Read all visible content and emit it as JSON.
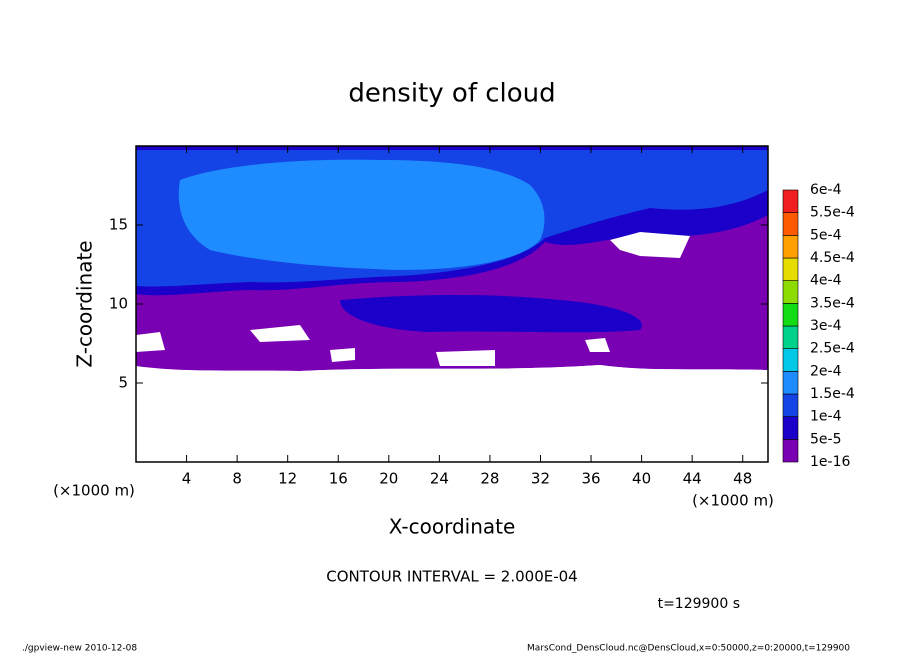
{
  "chart_data": {
    "type": "contour",
    "title": "density of cloud",
    "x_label": "X-coordinate",
    "y_label": "Z-coordinate",
    "x_unit": "(×1000 m)",
    "y_unit": "(×1000 m)",
    "xlim": [
      0,
      50
    ],
    "ylim": [
      0,
      20
    ],
    "xticks": [
      4,
      8,
      12,
      16,
      20,
      24,
      28,
      32,
      36,
      40,
      44,
      48
    ],
    "yticks": [
      5,
      10,
      15
    ],
    "colorbar": {
      "levels": [
        {
          "value": 1e-16,
          "label": "1e-16"
        },
        {
          "value": 5e-05,
          "label": "5e-5"
        },
        {
          "value": 0.0001,
          "label": "1e-4"
        },
        {
          "value": 0.00015,
          "label": "1.5e-4"
        },
        {
          "value": 0.0002,
          "label": "2e-4"
        },
        {
          "value": 0.00025,
          "label": "2.5e-4"
        },
        {
          "value": 0.0003,
          "label": "3e-4"
        },
        {
          "value": 0.00035,
          "label": "3.5e-4"
        },
        {
          "value": 0.0004,
          "label": "4e-4"
        },
        {
          "value": 0.00045,
          "label": "4.5e-4"
        },
        {
          "value": 0.0005,
          "label": "5e-4"
        },
        {
          "value": 0.00055,
          "label": "5.5e-4"
        },
        {
          "value": 0.0006,
          "label": "6e-4"
        }
      ],
      "colors": [
        "#7a00b4",
        "#1a00c8",
        "#1444e6",
        "#1e8cff",
        "#00c8e6",
        "#00d28c",
        "#14dc14",
        "#8cdc00",
        "#e6dc00",
        "#ffa000",
        "#ff5a00",
        "#f01e1e",
        "#ff8c8c"
      ]
    },
    "contour_interval": "CONTOUR INTERVAL = 2.000E-04",
    "time": "t=129900 s"
  },
  "footer": {
    "left": "./gpview-new  2010-12-08",
    "right": "MarsCond_DensCloud.nc@DensCloud,x=0:50000,z=0:20000,t=129900"
  }
}
